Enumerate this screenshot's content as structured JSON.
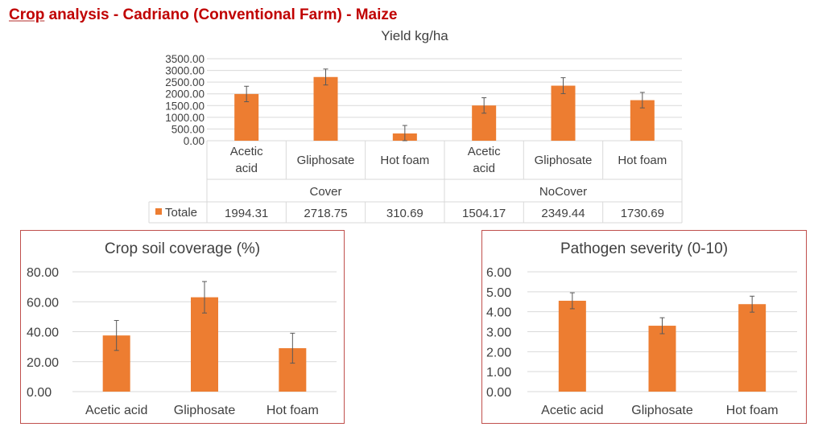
{
  "page": {
    "title_accent": "Crop",
    "title_rest": " analysis - Cadriano (Conventional Farm) - Maize"
  },
  "colors": {
    "bar": "#ed7d31",
    "frame": "#c0504d",
    "title": "#c00000"
  },
  "chart_data": [
    {
      "type": "bar",
      "title": "Yield kg/ha",
      "groups": [
        {
          "label": "Cover",
          "categories": [
            "Acetic acid",
            "Gliphosate",
            "Hot foam"
          ]
        },
        {
          "label": "NoCover",
          "categories": [
            "Acetic acid",
            "Gliphosate",
            "Hot foam"
          ]
        }
      ],
      "series": [
        {
          "name": "Totale",
          "values": [
            1994.31,
            2718.75,
            310.69,
            1504.17,
            2349.44,
            1730.69
          ]
        }
      ],
      "value_labels": [
        "1994.31",
        "2718.75",
        "310.69",
        "1504.17",
        "2349.44",
        "1730.69"
      ],
      "errors": [
        330,
        340,
        340,
        330,
        340,
        330
      ],
      "ylim": [
        0,
        3500
      ],
      "yticks": [
        "0.00",
        "500.00",
        "1000.00",
        "1500.00",
        "2000.00",
        "2500.00",
        "3000.00",
        "3500.00"
      ],
      "data_table": true,
      "grid": true
    },
    {
      "type": "bar",
      "title": "Crop soil coverage (%)",
      "categories": [
        "Acetic acid",
        "Gliphosate",
        "Hot foam"
      ],
      "values": [
        37.5,
        63.0,
        29.0
      ],
      "errors": [
        10.0,
        10.5,
        10.0
      ],
      "ylim": [
        0,
        80
      ],
      "yticks": [
        "0.00",
        "20.00",
        "40.00",
        "60.00",
        "80.00"
      ],
      "grid": true
    },
    {
      "type": "bar",
      "title": "Pathogen severity (0-10)",
      "categories": [
        "Acetic acid",
        "Gliphosate",
        "Hot foam"
      ],
      "values": [
        4.55,
        3.3,
        4.38
      ],
      "errors": [
        0.4,
        0.4,
        0.4
      ],
      "ylim": [
        0,
        6
      ],
      "yticks": [
        "0.00",
        "1.00",
        "2.00",
        "3.00",
        "4.00",
        "5.00",
        "6.00"
      ],
      "grid": true
    }
  ]
}
